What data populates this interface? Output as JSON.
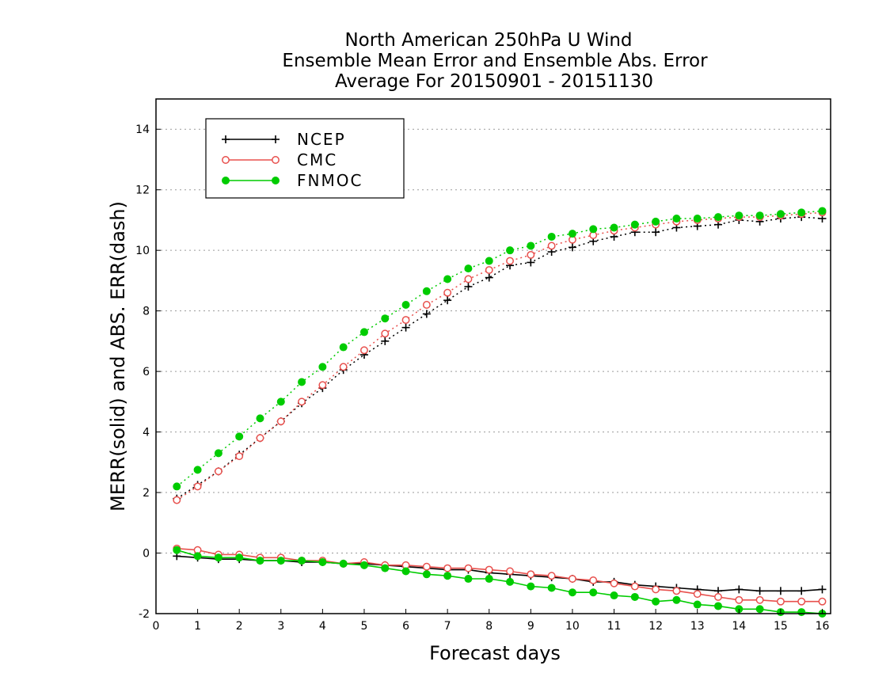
{
  "chart_data": {
    "type": "line",
    "title_lines": [
      "North American 250hPa U Wind",
      "Ensemble Mean Error and Ensemble Abs. Error",
      "Average For 20150901 - 20151130"
    ],
    "xlabel": "Forecast days",
    "ylabel": "MERR(solid) and ABS. ERR(dash)",
    "xlim": [
      0,
      16.2
    ],
    "ylim": [
      -2,
      15
    ],
    "x_ticks": [
      0,
      1,
      2,
      3,
      4,
      5,
      6,
      7,
      8,
      9,
      10,
      11,
      12,
      13,
      14,
      15,
      16
    ],
    "y_ticks": [
      -2,
      0,
      2,
      4,
      6,
      8,
      10,
      12,
      14
    ],
    "y_grid": "dotted horizontal lines",
    "legend_position": "top-left",
    "x": [
      0.5,
      1,
      1.5,
      2,
      2.5,
      3,
      3.5,
      4,
      4.5,
      5,
      5.5,
      6,
      6.5,
      7,
      7.5,
      8,
      8.5,
      9,
      9.5,
      10,
      10.5,
      11,
      11.5,
      12,
      12.5,
      13,
      13.5,
      14,
      14.5,
      15,
      15.5,
      16
    ],
    "series": [
      {
        "name": "NCEP",
        "color": "#000000",
        "marker": "plus",
        "merr": [
          -0.1,
          -0.15,
          -0.2,
          -0.2,
          -0.25,
          -0.25,
          -0.3,
          -0.3,
          -0.35,
          -0.35,
          -0.4,
          -0.45,
          -0.5,
          -0.55,
          -0.55,
          -0.65,
          -0.7,
          -0.75,
          -0.8,
          -0.85,
          -0.95,
          -0.95,
          -1.05,
          -1.1,
          -1.15,
          -1.2,
          -1.25,
          -1.2,
          -1.25,
          -1.25,
          -1.25,
          -1.2
        ],
        "abs_err": [
          1.8,
          2.25,
          2.7,
          3.25,
          3.8,
          4.35,
          4.95,
          5.45,
          6.05,
          6.55,
          7.0,
          7.45,
          7.9,
          8.35,
          8.8,
          9.1,
          9.5,
          9.6,
          9.95,
          10.1,
          10.3,
          10.45,
          10.6,
          10.6,
          10.75,
          10.8,
          10.85,
          11.0,
          10.95,
          11.05,
          11.1,
          11.05
        ]
      },
      {
        "name": "CMC",
        "color": "#e8504d",
        "marker": "open-circle",
        "merr": [
          0.15,
          0.1,
          -0.05,
          -0.05,
          -0.15,
          -0.15,
          -0.25,
          -0.25,
          -0.35,
          -0.3,
          -0.4,
          -0.4,
          -0.45,
          -0.5,
          -0.5,
          -0.55,
          -0.6,
          -0.7,
          -0.75,
          -0.85,
          -0.9,
          -1.0,
          -1.1,
          -1.2,
          -1.25,
          -1.35,
          -1.45,
          -1.55,
          -1.55,
          -1.6,
          -1.6,
          -1.6
        ],
        "abs_err": [
          1.75,
          2.2,
          2.7,
          3.2,
          3.8,
          4.35,
          5.0,
          5.55,
          6.15,
          6.7,
          7.25,
          7.7,
          8.2,
          8.6,
          9.05,
          9.35,
          9.65,
          9.85,
          10.15,
          10.35,
          10.5,
          10.65,
          10.75,
          10.85,
          10.95,
          11.0,
          11.05,
          11.1,
          11.1,
          11.15,
          11.2,
          11.25
        ]
      },
      {
        "name": "FNMOC",
        "color": "#00cc00",
        "marker": "filled-circle",
        "merr": [
          0.1,
          -0.1,
          -0.15,
          -0.15,
          -0.25,
          -0.25,
          -0.25,
          -0.3,
          -0.35,
          -0.4,
          -0.5,
          -0.6,
          -0.7,
          -0.75,
          -0.85,
          -0.85,
          -0.95,
          -1.1,
          -1.15,
          -1.3,
          -1.3,
          -1.4,
          -1.45,
          -1.6,
          -1.55,
          -1.7,
          -1.75,
          -1.85,
          -1.85,
          -1.95,
          -1.95,
          -2.0
        ],
        "abs_err": [
          2.2,
          2.75,
          3.3,
          3.85,
          4.45,
          5.0,
          5.65,
          6.15,
          6.8,
          7.3,
          7.75,
          8.2,
          8.65,
          9.05,
          9.4,
          9.65,
          10.0,
          10.15,
          10.45,
          10.55,
          10.7,
          10.75,
          10.85,
          10.95,
          11.05,
          11.05,
          11.1,
          11.15,
          11.15,
          11.2,
          11.25,
          11.3
        ]
      }
    ]
  }
}
